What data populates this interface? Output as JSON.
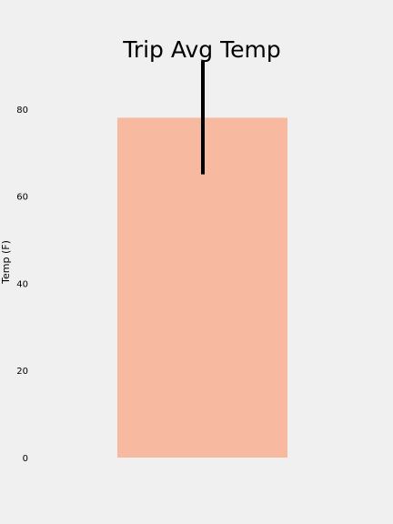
{
  "chart_data": {
    "type": "bar",
    "title": "Trip Avg Temp",
    "xlabel": "",
    "ylabel": "Temp (F)",
    "categories": [
      ""
    ],
    "values": [
      78
    ],
    "error": {
      "low": 65,
      "high": 91
    },
    "ylim": [
      0,
      95
    ],
    "yticks": [
      0,
      20,
      40,
      60,
      80
    ],
    "grid": false,
    "bar_color": "#f7b9a0",
    "error_color": "#000000",
    "background": "#f0f0f0"
  }
}
